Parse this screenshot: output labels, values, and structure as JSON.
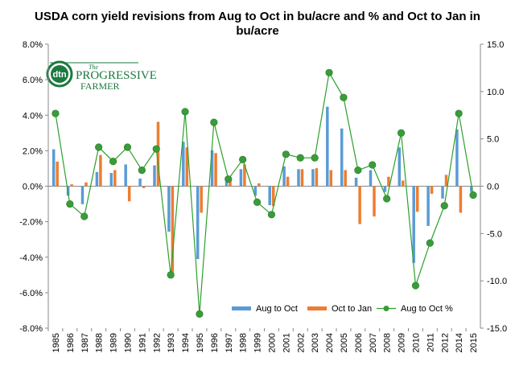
{
  "chart_data": {
    "type": "bar",
    "title_line1": "USDA corn yield revisions from Aug to Oct in bu/acre and %  and Oct to Jan in",
    "title_line2": "bu/acre",
    "categories": [
      "1985",
      "1986",
      "1987",
      "1988",
      "1989",
      "1990",
      "1991",
      "1992",
      "1993",
      "1994",
      "1995",
      "1996",
      "1997",
      "1998",
      "1999",
      "2000",
      "2001",
      "2002",
      "2003",
      "2004",
      "2005",
      "2006",
      "2007",
      "2008",
      "2009",
      "2010",
      "2011",
      "2012",
      "2014",
      "2015"
    ],
    "series": [
      {
        "name": "Aug to Oct",
        "kind": "bar",
        "axis": "right",
        "color": "#5b9bd5",
        "values": [
          3.9,
          -1.0,
          -1.9,
          1.5,
          1.4,
          2.3,
          0.8,
          2.2,
          -4.8,
          4.7,
          -7.7,
          3.8,
          0.5,
          1.8,
          -1.0,
          -2.0,
          2.1,
          1.8,
          1.8,
          8.4,
          6.1,
          0.9,
          1.7,
          -0.6,
          4.1,
          -8.1,
          -4.2,
          -1.3,
          6.0,
          -0.6
        ]
      },
      {
        "name": "Oct to Jan",
        "kind": "bar",
        "axis": "right",
        "color": "#ed7d31",
        "values": [
          2.6,
          0.2,
          0.4,
          3.3,
          1.7,
          -1.6,
          -0.2,
          6.8,
          -9.1,
          4.1,
          -2.8,
          3.5,
          0.6,
          2.3,
          0.3,
          -2.1,
          1.0,
          1.8,
          1.9,
          1.7,
          1.7,
          -4.0,
          -3.2,
          1.0,
          0.6,
          -2.7,
          -0.8,
          1.2,
          -2.8,
          0.0
        ]
      },
      {
        "name": "Aug to Oct %",
        "kind": "line",
        "axis": "left",
        "color": "#2ca02c",
        "values": [
          4.1,
          -1.0,
          -1.7,
          2.2,
          1.4,
          2.2,
          0.9,
          2.1,
          -5.0,
          4.2,
          -7.2,
          3.6,
          0.4,
          1.5,
          -0.9,
          -1.6,
          1.8,
          1.6,
          1.6,
          6.4,
          5.0,
          0.9,
          1.2,
          -0.7,
          3.0,
          -5.6,
          -3.2,
          -1.1,
          4.1,
          -0.5
        ]
      }
    ],
    "y_left": {
      "min": -8,
      "max": 8,
      "step": 2,
      "format": "percent",
      "tick_labels": [
        "-8.0%",
        "-6.0%",
        "-4.0%",
        "-2.0%",
        "0.0%",
        "2.0%",
        "4.0%",
        "6.0%",
        "8.0%"
      ]
    },
    "y_right": {
      "min": -15,
      "max": 15,
      "step": 5,
      "tick_labels": [
        "-15.0",
        "-10.0",
        "-5.0",
        "0.0",
        "5.0",
        "10.0",
        "15.0"
      ]
    },
    "legend": {
      "placement": "bottom-center",
      "entries": [
        "Aug to Oct",
        "Oct to Jan",
        "Aug to Oct %"
      ]
    },
    "grid": false
  },
  "logo": {
    "mark": "dtn",
    "line1": "The",
    "line2": "PROGRESSIVE",
    "line3": "FARMER",
    "colors": {
      "green": "#1b7a3e",
      "dark": "#0d4f29"
    }
  }
}
